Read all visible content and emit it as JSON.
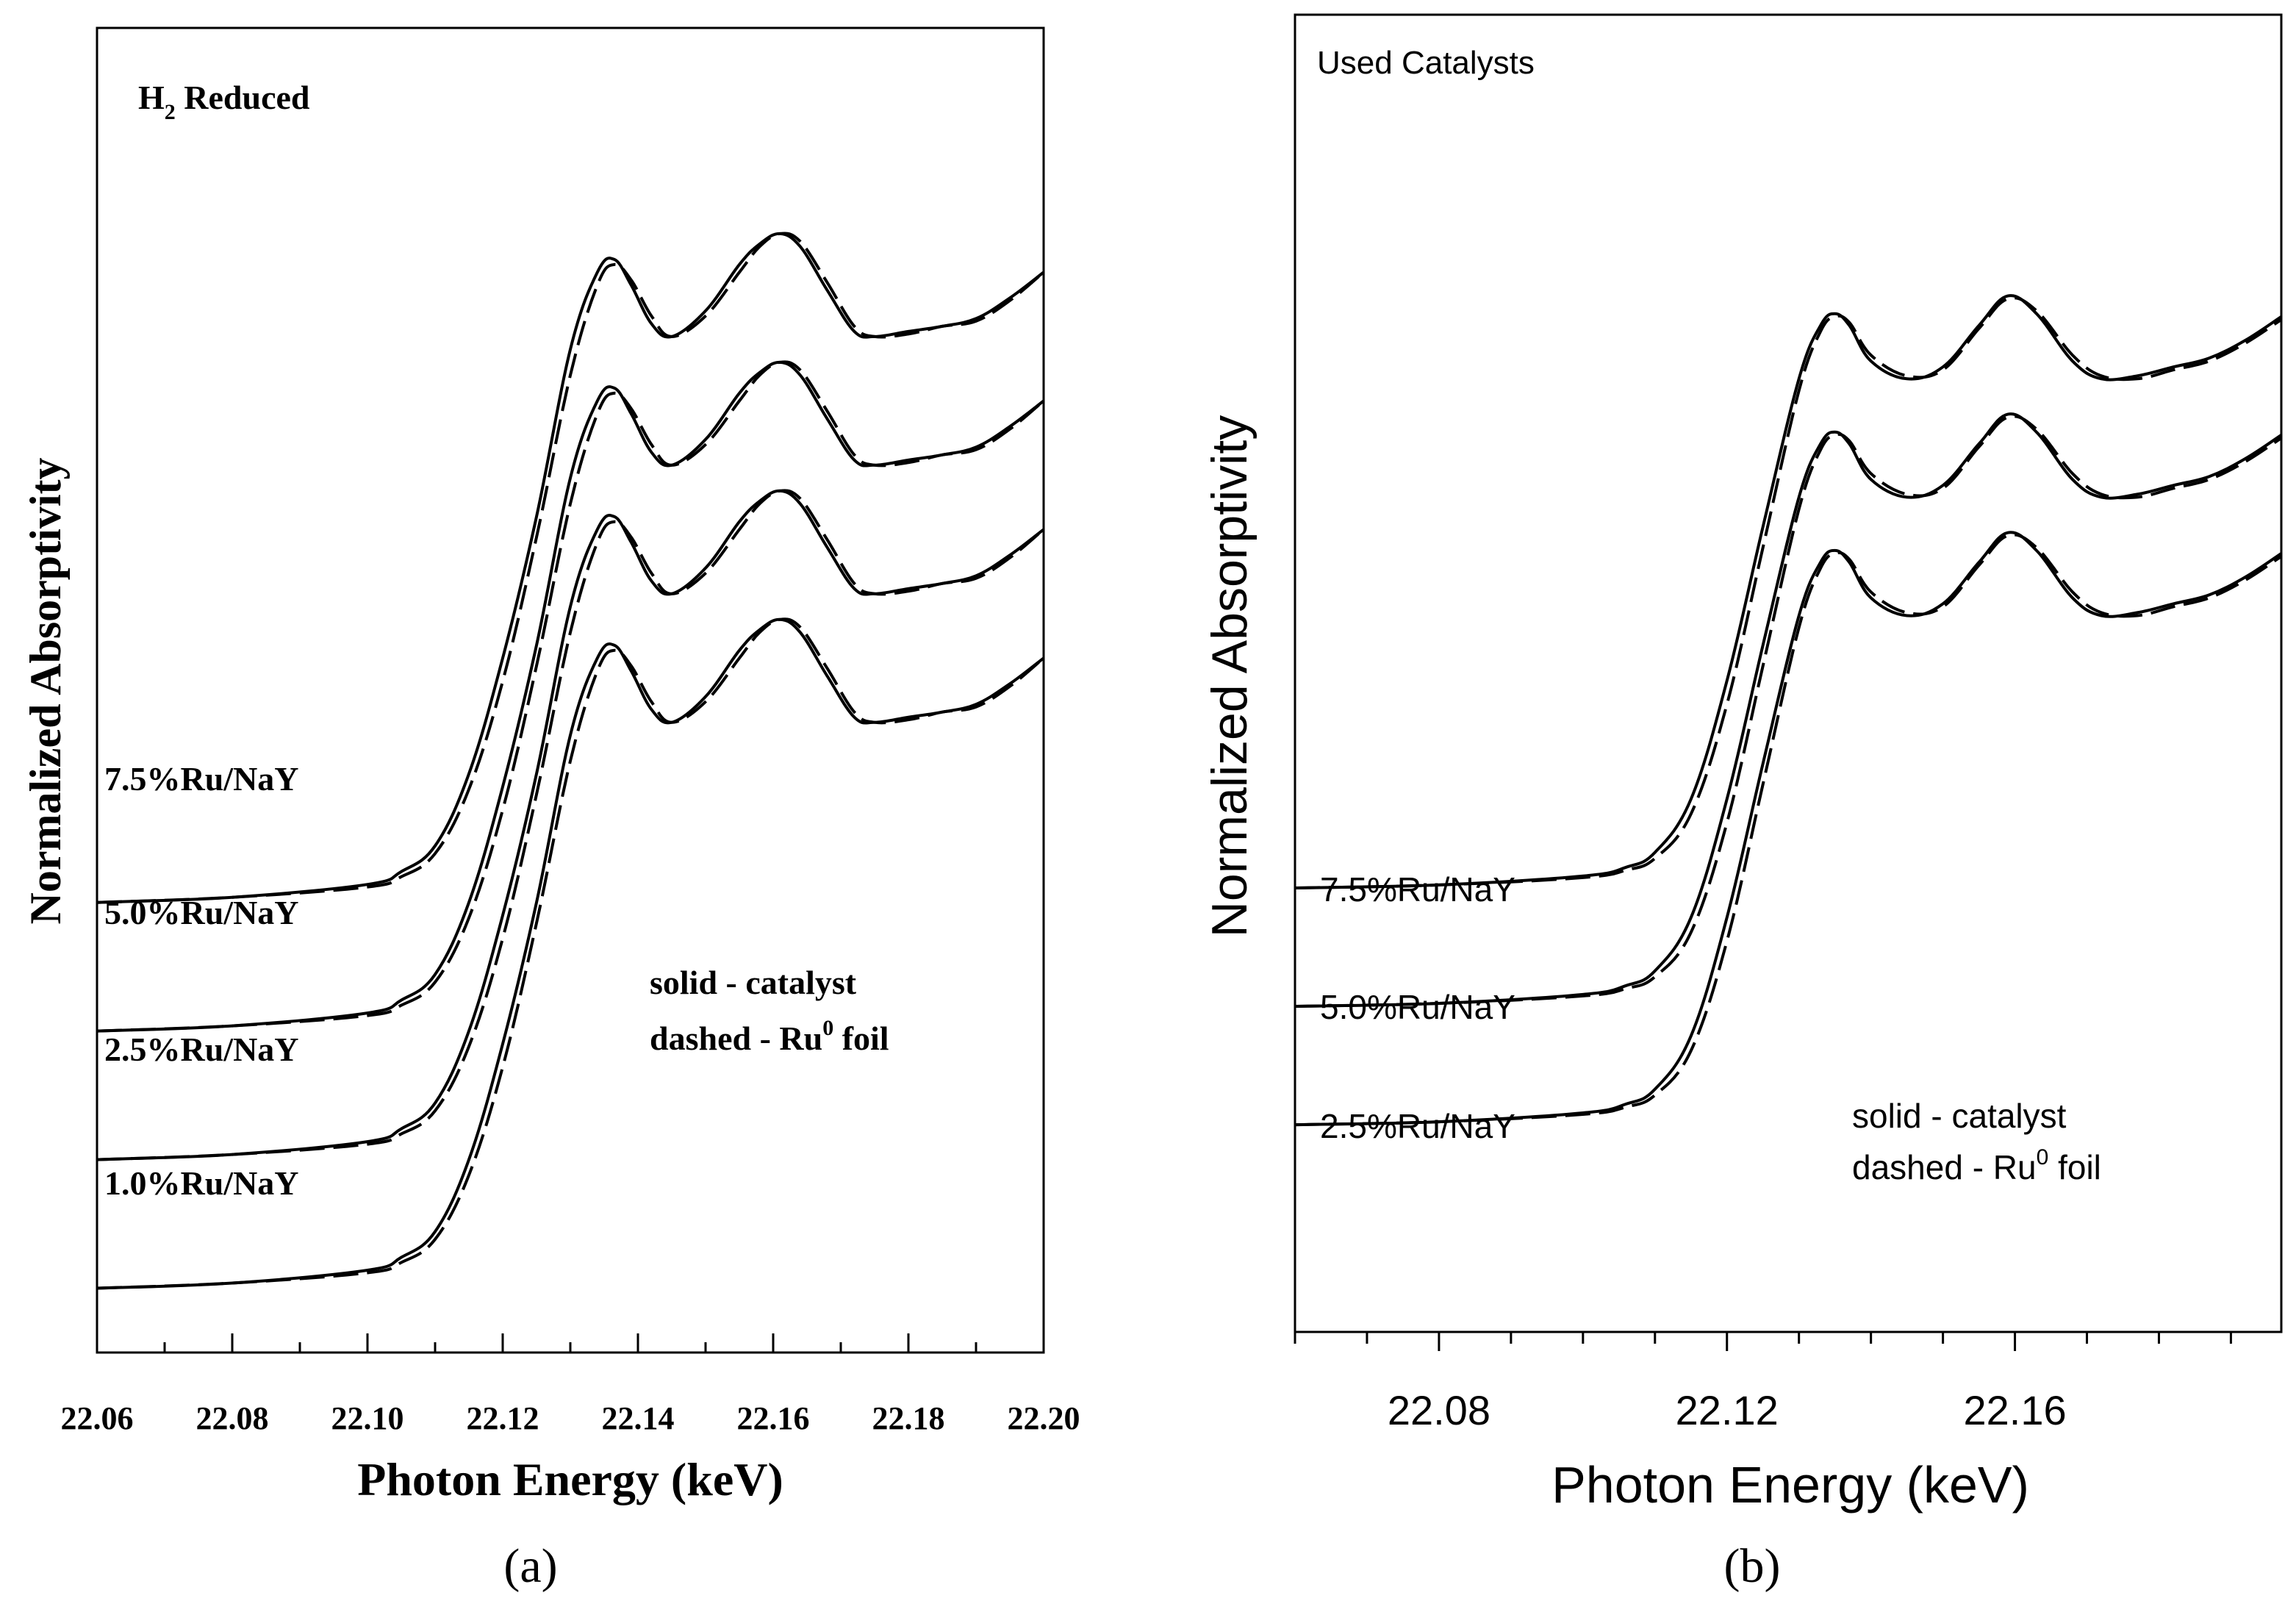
{
  "chart_data": [
    {
      "type": "line",
      "panel_label": "(a)",
      "title": "H2 Reduced",
      "title_main": "H",
      "title_sub": "2",
      "title_rest": " Reduced",
      "xlabel": "Photon Energy (keV)",
      "ylabel": "Normalized Absorptivity",
      "xlim": [
        22.06,
        22.2
      ],
      "ylim": [
        -0.25,
        4.9
      ],
      "xticks": [
        "22.06",
        "22.08",
        "22.10",
        "22.12",
        "22.14",
        "22.16",
        "22.18",
        "22.20"
      ],
      "legend": {
        "line1": "solid - catalyst",
        "line2_prefix": "dashed - Ru",
        "line2_sup": "0",
        "line2_suffix": " foil"
      },
      "series": [
        {
          "name": "1.0%Ru/NaY",
          "offset": 0.0
        },
        {
          "name": "2.5%Ru/NaY",
          "offset": 0.5
        },
        {
          "name": "5.0%Ru/NaY",
          "offset": 1.0
        },
        {
          "name": "7.5%Ru/NaY",
          "offset": 1.5
        }
      ],
      "spectrum": {
        "x": [
          22.06,
          22.08,
          22.1,
          22.105,
          22.11,
          22.115,
          22.12,
          22.125,
          22.13,
          22.134,
          22.1365,
          22.139,
          22.142,
          22.145,
          22.15,
          22.155,
          22.158,
          22.161,
          22.164,
          22.168,
          22.172,
          22.175,
          22.18,
          22.185,
          22.19,
          22.195,
          22.2
        ],
        "solid": [
          0.0,
          0.02,
          0.07,
          0.12,
          0.22,
          0.5,
          0.95,
          1.5,
          2.15,
          2.45,
          2.5,
          2.4,
          2.25,
          2.2,
          2.3,
          2.48,
          2.56,
          2.6,
          2.55,
          2.38,
          2.22,
          2.2,
          2.22,
          2.24,
          2.27,
          2.35,
          2.45
        ],
        "dashed": [
          0.0,
          0.02,
          0.06,
          0.1,
          0.19,
          0.44,
          0.86,
          1.42,
          2.05,
          2.4,
          2.48,
          2.42,
          2.28,
          2.2,
          2.28,
          2.45,
          2.55,
          2.6,
          2.57,
          2.41,
          2.24,
          2.2,
          2.21,
          2.24,
          2.26,
          2.34,
          2.45
        ]
      }
    },
    {
      "type": "line",
      "panel_label": "(b)",
      "title": "Used Catalysts",
      "xlabel": "Photon Energy (keV)",
      "ylabel": "Normalized Absorptivity",
      "xlim": [
        22.06,
        22.197
      ],
      "ylim": [
        -0.7,
        3.75
      ],
      "xticks": [
        "22.08",
        "22.12",
        "22.16"
      ],
      "legend": {
        "line1": "solid - catalyst",
        "line2_prefix": "dashed - Ru",
        "line2_sup": "0",
        "line2_suffix": " foil"
      },
      "series": [
        {
          "name": "2.5%Ru/NaY",
          "offset": 0.0
        },
        {
          "name": "5.0%Ru/NaY",
          "offset": 0.4
        },
        {
          "name": "7.5%Ru/NaY",
          "offset": 0.8
        }
      ],
      "spectrum": {
        "x": [
          22.06,
          22.08,
          22.1,
          22.106,
          22.11,
          22.115,
          22.12,
          22.125,
          22.13,
          22.133,
          22.135,
          22.137,
          22.14,
          22.145,
          22.15,
          22.155,
          22.159,
          22.163,
          22.168,
          22.172,
          22.177,
          22.182,
          22.187,
          22.192,
          22.197
        ],
        "solid": [
          0.0,
          0.01,
          0.04,
          0.07,
          0.12,
          0.3,
          0.7,
          1.22,
          1.72,
          1.9,
          1.94,
          1.9,
          1.78,
          1.72,
          1.76,
          1.9,
          2.0,
          1.94,
          1.78,
          1.72,
          1.73,
          1.76,
          1.79,
          1.85,
          1.93
        ],
        "dashed": [
          0.0,
          0.01,
          0.035,
          0.06,
          0.1,
          0.25,
          0.62,
          1.15,
          1.68,
          1.88,
          1.93,
          1.91,
          1.8,
          1.73,
          1.75,
          1.89,
          1.99,
          1.95,
          1.8,
          1.73,
          1.72,
          1.75,
          1.78,
          1.84,
          1.92
        ]
      }
    }
  ]
}
